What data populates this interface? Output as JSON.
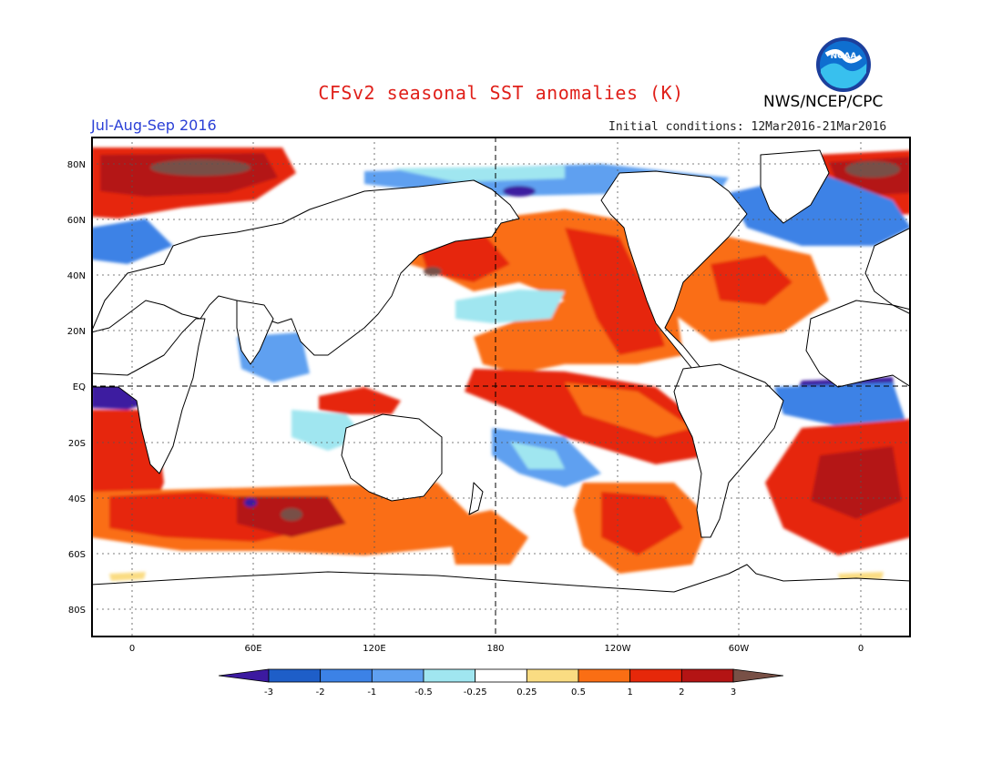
{
  "header": {
    "title": "CFSv2 seasonal SST anomalies (K)",
    "organization": "NWS/NCEP/CPC",
    "season": "Jul-Aug-Sep 2016",
    "initial_conditions": "Initial conditions: 12Mar2016-21Mar2016",
    "logo_icon": "noaa-logo-icon",
    "logo_text": "NOAA"
  },
  "map": {
    "lat_labels": [
      "80N",
      "60N",
      "40N",
      "20N",
      "EQ",
      "20S",
      "40S",
      "60S",
      "80S"
    ],
    "lon_labels": [
      "0",
      "60E",
      "120E",
      "180",
      "120W",
      "60W",
      "0"
    ],
    "center_longitude": "180",
    "colors": {
      "ocean_neutral": "#ffffff",
      "land": "#ffffff",
      "coast": "#000000"
    }
  },
  "colorbar": {
    "labels": [
      "-3",
      "-2",
      "-1",
      "-0.5",
      "-0.25",
      "0.25",
      "0.5",
      "1",
      "2",
      "3"
    ],
    "colors": [
      "#3c1aa0",
      "#1e5ec8",
      "#3c82e6",
      "#5fa0f0",
      "#a0e6f0",
      "#ffffff",
      "#fadc82",
      "#fa6e14",
      "#e6280a",
      "#b41414",
      "#785046"
    ]
  }
}
